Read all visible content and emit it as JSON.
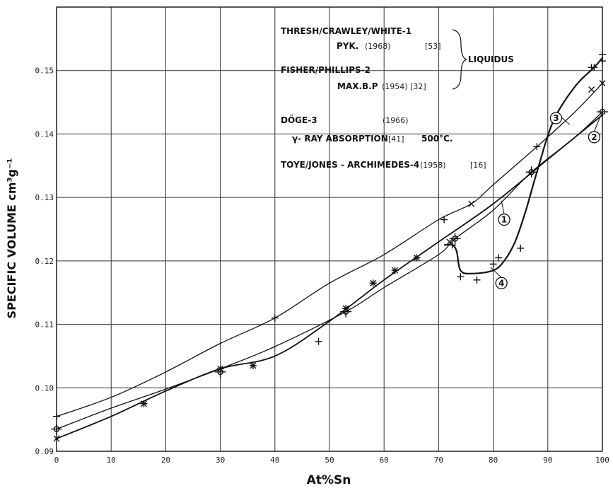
{
  "chart_data": {
    "type": "line",
    "xlabel": "At%Sn",
    "ylabel": "SPECIFIC VOLUME cm³g⁻¹",
    "xlim": [
      0,
      100
    ],
    "ylim": [
      0.09,
      0.16
    ],
    "xticks": [
      "0",
      "10",
      "20",
      "30",
      "40",
      "50",
      "60",
      "70",
      "80",
      "90",
      "100"
    ],
    "yticks": [
      {
        "value": 0.09,
        "label": "0.09"
      },
      {
        "value": 0.1,
        "label": "0.10"
      },
      {
        "value": 0.11,
        "label": "0.11"
      },
      {
        "value": 0.12,
        "label": "0.12"
      },
      {
        "value": 0.13,
        "label": "0.13"
      },
      {
        "value": 0.14,
        "label": "0.14"
      },
      {
        "value": 0.15,
        "label": "0.15"
      }
    ],
    "grid": true,
    "legend": {
      "lines": [
        {
          "text": "THRESH/CRAWLEY/WHITE-1",
          "style": "bold"
        },
        {
          "text": "PYK.",
          "style": "bold"
        },
        {
          "text": "(1968)",
          "style": "small"
        },
        {
          "text": "[53]",
          "style": "small"
        },
        {
          "text": "FISHER/PHILLIPS-2",
          "style": "bold"
        },
        {
          "text": "MAX.B.P",
          "style": "bold"
        },
        {
          "text": "(1954) [32]",
          "style": "small"
        },
        {
          "text": "LIQUIDUS",
          "style": "bold"
        },
        {
          "text": "DÖGE-3",
          "style": "bold"
        },
        {
          "text": "(1966)",
          "style": "small"
        },
        {
          "text": "γ- RAY ABSORPTION",
          "style": "bold"
        },
        {
          "text": "[41]",
          "style": "small"
        },
        {
          "text": "500°C.",
          "style": "bold"
        },
        {
          "text": "TOYE/JONES - ARCHIMEDES-4",
          "style": "bold"
        },
        {
          "text": "(1958)",
          "style": "small"
        },
        {
          "text": "[16]",
          "style": "small"
        }
      ]
    },
    "series": [
      {
        "name": "1",
        "marker": "circle-cross",
        "x": [
          0,
          30,
          53,
          73,
          87,
          100
        ],
        "y": [
          0.0935,
          0.1025,
          0.112,
          0.1235,
          0.134,
          0.1435
        ],
        "curve_x": [
          0,
          10,
          20,
          30,
          40,
          53,
          60,
          70,
          73,
          80,
          87,
          95,
          100
        ],
        "curve_y": [
          0.0935,
          0.0968,
          0.0998,
          0.103,
          0.1065,
          0.112,
          0.1158,
          0.121,
          0.1235,
          0.128,
          0.134,
          0.1395,
          0.1435
        ]
      },
      {
        "name": "2",
        "marker": "plus",
        "x": [
          0,
          16,
          30,
          36,
          40,
          48,
          53,
          58,
          62,
          66,
          71,
          88,
          98,
          100
        ],
        "y": [
          0.0955,
          0.0975,
          0.103,
          0.1035,
          0.111,
          0.1073,
          0.1125,
          0.1165,
          0.1185,
          0.1205,
          0.1265,
          0.138,
          0.1505,
          0.1525
        ],
        "curve_x": [
          0,
          10,
          20,
          30,
          40,
          50,
          60,
          70,
          76,
          80,
          88,
          95,
          100
        ],
        "curve_y": [
          0.0955,
          0.0985,
          0.1025,
          0.107,
          0.111,
          0.1165,
          0.121,
          0.1265,
          0.129,
          0.132,
          0.138,
          0.1435,
          0.148
        ]
      },
      {
        "name": "3",
        "marker": "x",
        "x": [
          0,
          16,
          30,
          36,
          53,
          58,
          62,
          66,
          72,
          76,
          98,
          100
        ],
        "y": [
          0.092,
          0.0975,
          0.103,
          0.1035,
          0.1125,
          0.1165,
          0.1185,
          0.1205,
          0.123,
          0.129,
          0.147,
          0.148
        ],
        "curve_x": [
          0,
          10,
          20,
          30,
          40,
          50,
          60,
          70,
          80,
          90,
          100
        ],
        "curve_y": [
          0.092,
          0.0955,
          0.0995,
          0.103,
          0.105,
          0.1105,
          0.117,
          0.123,
          0.129,
          0.136,
          0.143
        ]
      },
      {
        "name": "4",
        "marker": "plus",
        "x": [
          72.5,
          74,
          77,
          80,
          81,
          85,
          98.5,
          100
        ],
        "y": [
          0.1225,
          0.1175,
          0.117,
          0.1195,
          0.1205,
          0.122,
          0.1505,
          0.1515
        ],
        "curve_x": [
          71,
          72.5,
          73.3,
          74,
          76,
          80,
          82,
          84,
          86,
          88,
          91,
          95,
          98.5,
          100
        ],
        "curve_y": [
          0.1225,
          0.1225,
          0.1215,
          0.1185,
          0.118,
          0.1185,
          0.12,
          0.123,
          0.128,
          0.134,
          0.142,
          0.1475,
          0.1505,
          0.152
        ]
      }
    ],
    "callouts": [
      {
        "label": "1",
        "x": 82,
        "y": 0.1265,
        "series": "1"
      },
      {
        "label": "2",
        "x": 98.5,
        "y": 0.1395,
        "series": "2"
      },
      {
        "label": "3",
        "x": 91.5,
        "y": 0.1425,
        "series": "3"
      },
      {
        "label": "4",
        "x": 81.5,
        "y": 0.1165,
        "series": "4"
      }
    ]
  }
}
